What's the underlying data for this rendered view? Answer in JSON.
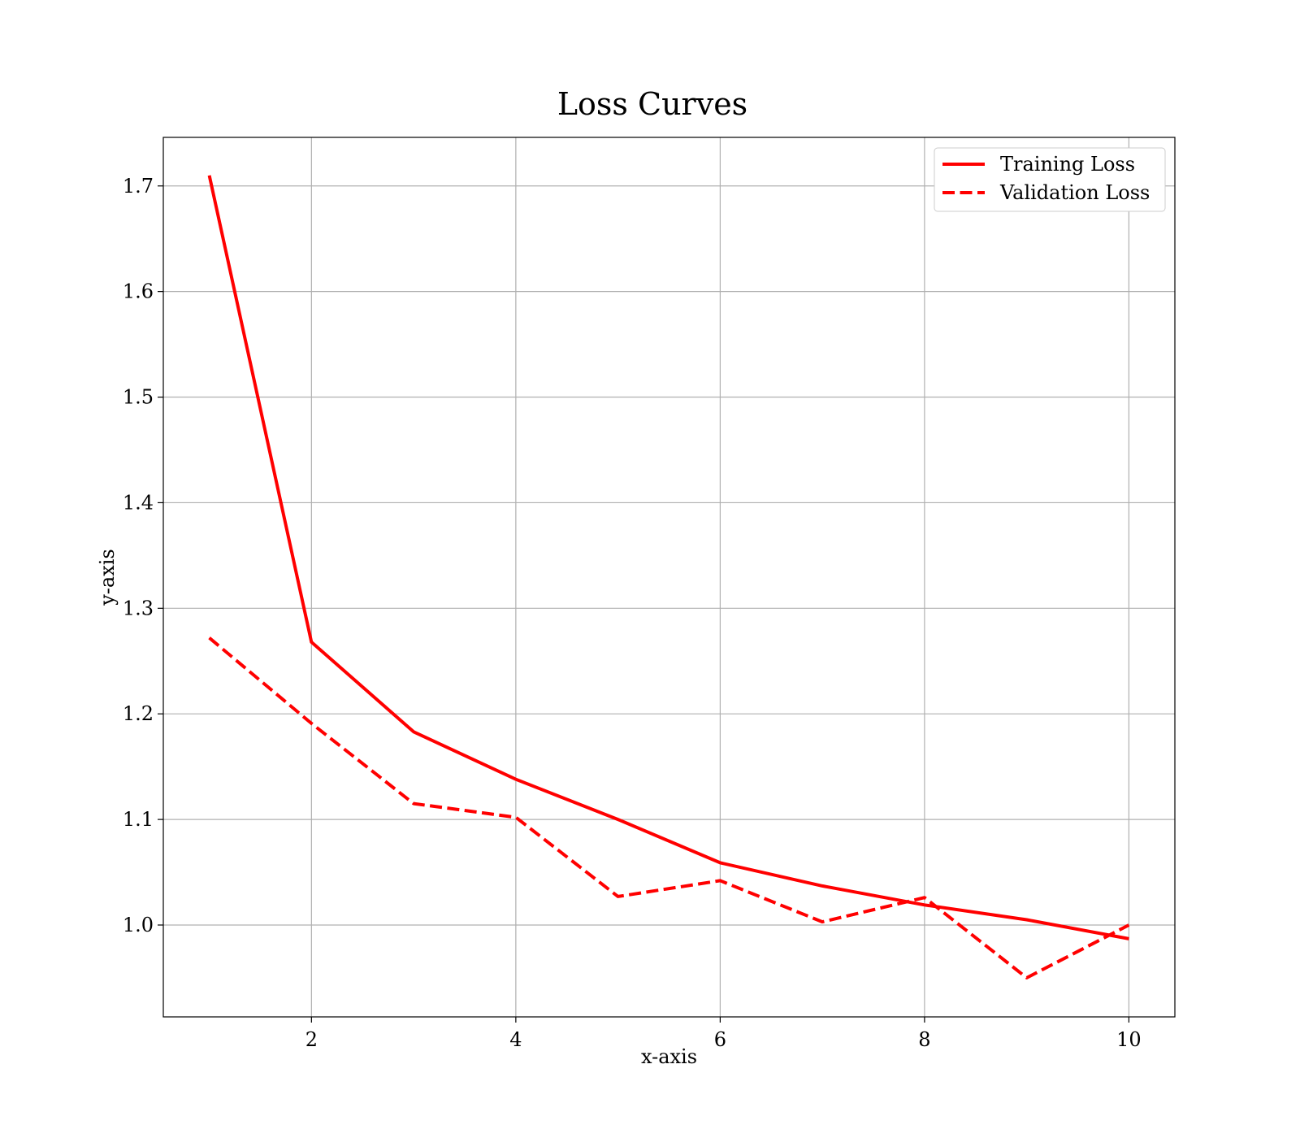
{
  "chart_data": {
    "type": "line",
    "title": "Loss Curves",
    "xlabel": "x-axis",
    "ylabel": "y-axis",
    "xlim": [
      0.55,
      10.45
    ],
    "ylim": [
      0.913,
      1.746
    ],
    "xticks": [
      2,
      4,
      6,
      8,
      10
    ],
    "xtick_labels": [
      "2",
      "4",
      "6",
      "8",
      "10"
    ],
    "yticks": [
      1.0,
      1.1,
      1.2,
      1.3,
      1.4,
      1.5,
      1.6,
      1.7
    ],
    "ytick_labels": [
      "1.0",
      "1.1",
      "1.2",
      "1.3",
      "1.4",
      "1.5",
      "1.6",
      "1.7"
    ],
    "grid": true,
    "legend_position": "top-right",
    "x": [
      1,
      2,
      3,
      4,
      5,
      6,
      7,
      8,
      9,
      10
    ],
    "series": [
      {
        "name": "Training Loss",
        "color": "#ff0000",
        "style": "solid",
        "values": [
          1.71,
          1.268,
          1.183,
          1.138,
          1.1,
          1.059,
          1.037,
          1.019,
          1.005,
          0.987
        ]
      },
      {
        "name": "Validation Loss",
        "color": "#ff0000",
        "style": "dashed",
        "values": [
          1.272,
          1.191,
          1.115,
          1.102,
          1.027,
          1.042,
          1.003,
          1.026,
          0.95,
          1.0
        ]
      }
    ]
  }
}
